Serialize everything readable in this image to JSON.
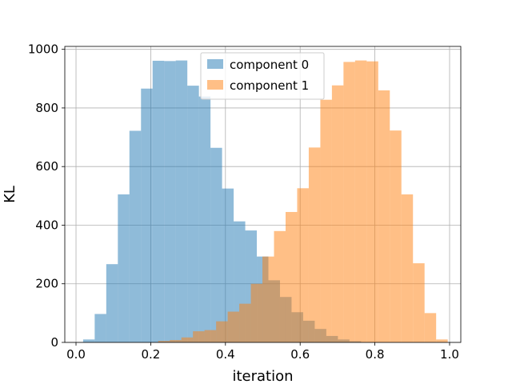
{
  "chart_data": {
    "type": "bar",
    "title": "",
    "xlabel": "iteration",
    "ylabel": "KL",
    "xlim": [
      -0.03,
      1.03
    ],
    "ylim": [
      0,
      1010
    ],
    "grid": true,
    "legend_position": "top-center",
    "x_ticks": [
      0.0,
      0.2,
      0.4,
      0.6,
      0.8,
      1.0
    ],
    "x_tick_labels": [
      "0.0",
      "0.2",
      "0.4",
      "0.6",
      "0.8",
      "1.0"
    ],
    "y_ticks": [
      0,
      200,
      400,
      600,
      800,
      1000
    ],
    "y_tick_labels": [
      "0",
      "200",
      "400",
      "600",
      "800",
      "1000"
    ],
    "series": [
      {
        "name": "component 0",
        "color": "#1f77b4",
        "alpha": 0.5,
        "bins": [
          [
            0.019,
            0.05,
            10
          ],
          [
            0.05,
            0.081,
            97
          ],
          [
            0.081,
            0.112,
            267
          ],
          [
            0.112,
            0.143,
            505
          ],
          [
            0.143,
            0.174,
            722
          ],
          [
            0.174,
            0.205,
            866
          ],
          [
            0.205,
            0.236,
            961
          ],
          [
            0.236,
            0.267,
            960
          ],
          [
            0.267,
            0.298,
            962
          ],
          [
            0.298,
            0.329,
            876
          ],
          [
            0.329,
            0.36,
            839
          ],
          [
            0.36,
            0.391,
            664
          ],
          [
            0.391,
            0.422,
            525
          ],
          [
            0.422,
            0.453,
            413
          ],
          [
            0.453,
            0.484,
            382
          ],
          [
            0.484,
            0.515,
            293
          ],
          [
            0.515,
            0.546,
            212
          ],
          [
            0.546,
            0.577,
            155
          ],
          [
            0.577,
            0.608,
            103
          ],
          [
            0.608,
            0.639,
            74
          ],
          [
            0.639,
            0.67,
            46
          ],
          [
            0.67,
            0.701,
            22
          ],
          [
            0.701,
            0.732,
            10
          ],
          [
            0.732,
            0.763,
            4
          ]
        ]
      },
      {
        "name": "component 1",
        "color": "#ff7f0e",
        "alpha": 0.5,
        "bins": [
          [
            0.22,
            0.251,
            5
          ],
          [
            0.251,
            0.282,
            8
          ],
          [
            0.282,
            0.313,
            17
          ],
          [
            0.313,
            0.344,
            38
          ],
          [
            0.344,
            0.375,
            42
          ],
          [
            0.375,
            0.406,
            72
          ],
          [
            0.406,
            0.437,
            105
          ],
          [
            0.437,
            0.468,
            132
          ],
          [
            0.468,
            0.499,
            200
          ],
          [
            0.499,
            0.53,
            293
          ],
          [
            0.53,
            0.561,
            380
          ],
          [
            0.561,
            0.592,
            445
          ],
          [
            0.592,
            0.623,
            526
          ],
          [
            0.623,
            0.654,
            665
          ],
          [
            0.654,
            0.685,
            828
          ],
          [
            0.685,
            0.716,
            877
          ],
          [
            0.716,
            0.747,
            957
          ],
          [
            0.747,
            0.778,
            962
          ],
          [
            0.778,
            0.809,
            959
          ],
          [
            0.809,
            0.84,
            860
          ],
          [
            0.84,
            0.871,
            723
          ],
          [
            0.871,
            0.902,
            505
          ],
          [
            0.902,
            0.933,
            270
          ],
          [
            0.933,
            0.964,
            100
          ],
          [
            0.964,
            0.995,
            10
          ]
        ]
      }
    ]
  }
}
